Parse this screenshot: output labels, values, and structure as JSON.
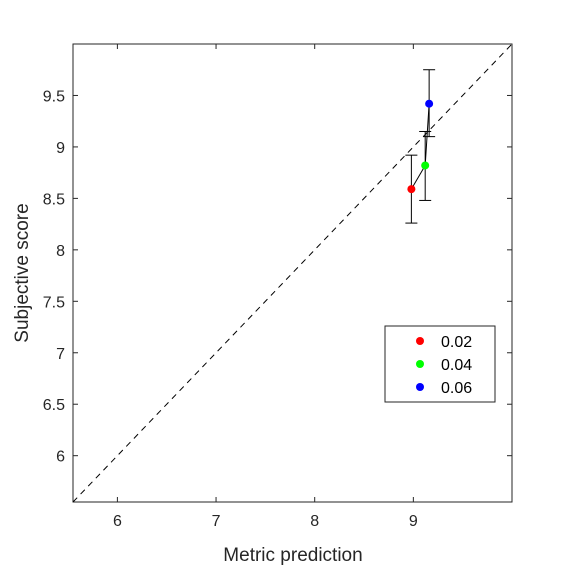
{
  "chart_data": {
    "type": "scatter",
    "xlabel": "Metric prediction",
    "ylabel": "Subjective score",
    "xlim": [
      5.55,
      10.0
    ],
    "ylim": [
      5.55,
      10.0
    ],
    "x_ticks": [
      "6",
      "7",
      "8",
      "9"
    ],
    "y_ticks": [
      "6",
      "6.5",
      "7",
      "7.5",
      "8",
      "8.5",
      "9",
      "9.5"
    ],
    "grid": false,
    "legend_position": "bottom-right",
    "reference_line": "y = x (dashed)",
    "connecting_line": true,
    "points": [
      {
        "label": "0.02",
        "x": 8.98,
        "y": 8.59,
        "err_low": 8.26,
        "err_high": 8.92,
        "color": "#ff0000"
      },
      {
        "label": "0.04",
        "x": 9.12,
        "y": 8.82,
        "err_low": 8.48,
        "err_high": 9.15,
        "color": "#00ff00"
      },
      {
        "label": "0.06",
        "x": 9.16,
        "y": 9.42,
        "err_low": 9.1,
        "err_high": 9.75,
        "color": "#0000ff"
      }
    ]
  }
}
